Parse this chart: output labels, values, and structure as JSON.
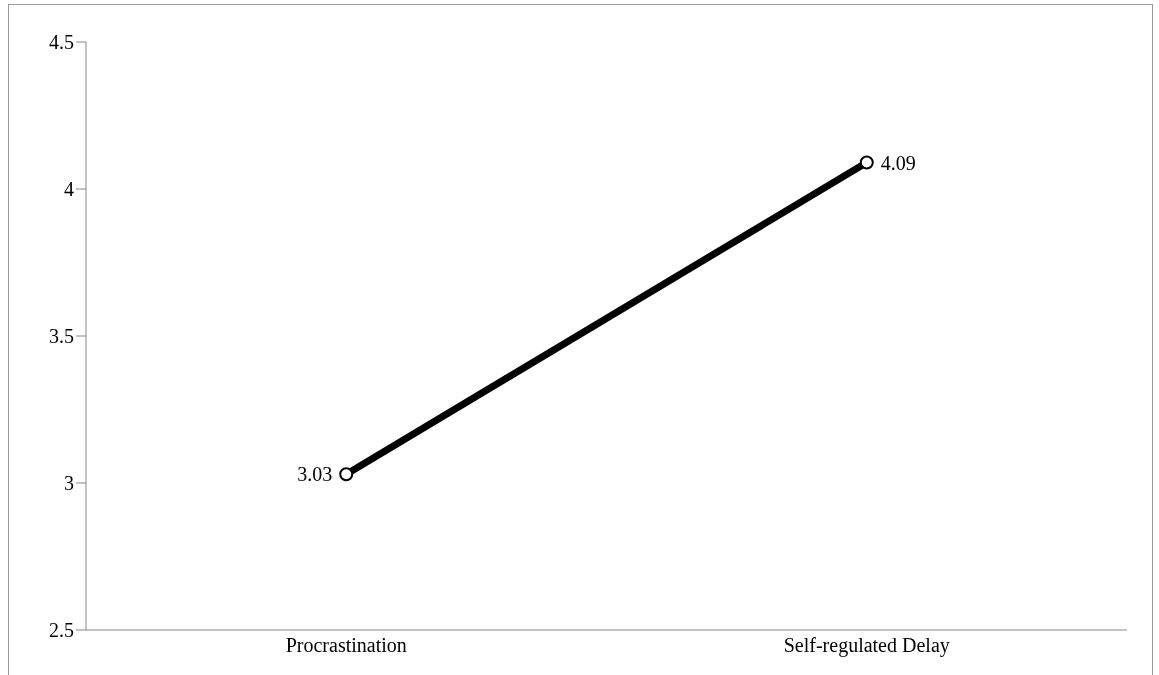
{
  "chart_data": {
    "type": "line",
    "categories": [
      "Procrastination",
      "Self-regulated Delay"
    ],
    "series": [
      {
        "color": "#000000",
        "values": [
          3.03,
          4.09
        ]
      }
    ],
    "ylim": [
      2.5,
      4.5
    ],
    "yticks": [
      2.5,
      3,
      3.5,
      4,
      4.5
    ],
    "grid": false,
    "legend": false,
    "marker": "circle",
    "line_style": "solid",
    "data_labels": true
  }
}
